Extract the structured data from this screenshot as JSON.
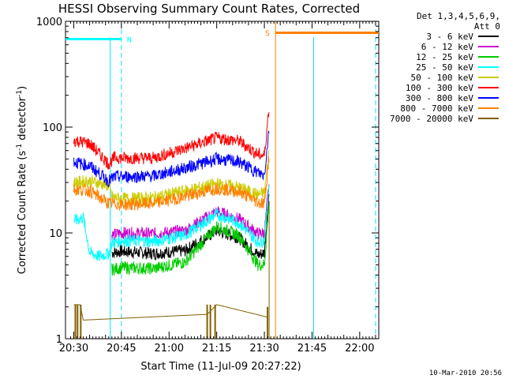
{
  "chart_data": {
    "type": "line",
    "title": "HESSI Observing Summary Count Rates, Corrected",
    "xlabel": "Start Time (11-Jul-09 20:27:22)",
    "ylabel_main": "Corrected Count Rate (s",
    "ylabel_sup1": "-1",
    "ylabel_mid": " detector",
    "ylabel_sup2": "-1",
    "ylabel_end": ")",
    "yscale": "log",
    "ylim": [
      1,
      1000
    ],
    "xlim_minutes": [
      -2.6,
      96
    ],
    "x_tick_labels": [
      "20:30",
      "20:45",
      "21:00",
      "21:15",
      "21:30",
      "21:45",
      "22:00"
    ],
    "x_tick_minutes": [
      0,
      15,
      30,
      45,
      60,
      75,
      90
    ],
    "y_tick_labels": [
      "1",
      "10",
      "100",
      "1000"
    ],
    "y_tick_values": [
      1,
      10,
      100,
      1000
    ],
    "legend_header": [
      "Det 1,3,4,5,6,9,",
      "Att 0"
    ],
    "series": [
      {
        "name": "3 - 6 keV",
        "color": "#000000",
        "values_minutes": [
          [
            12,
            6.5
          ],
          [
            15,
            6.7
          ],
          [
            25,
            6.4
          ],
          [
            35,
            6.8
          ],
          [
            45,
            10.5
          ],
          [
            52,
            9
          ],
          [
            58,
            6.2
          ],
          [
            60,
            6.5
          ],
          [
            61.5,
            25
          ]
        ]
      },
      {
        "name": "6 - 12 keV",
        "color": "#cc00cc",
        "values_minutes": [
          [
            12,
            9.5
          ],
          [
            15,
            10
          ],
          [
            25,
            9.8
          ],
          [
            35,
            10.5
          ],
          [
            45,
            16
          ],
          [
            52,
            13.5
          ],
          [
            58,
            9.8
          ],
          [
            60,
            10
          ],
          [
            61.5,
            30
          ]
        ]
      },
      {
        "name": "12 - 25 keV",
        "color": "#00cc00",
        "values_minutes": [
          [
            12,
            4.5
          ],
          [
            15,
            4.7
          ],
          [
            25,
            4.6
          ],
          [
            35,
            5.3
          ],
          [
            45,
            11.5
          ],
          [
            52,
            9.5
          ],
          [
            58,
            5
          ],
          [
            60,
            5
          ],
          [
            61.5,
            20
          ]
        ]
      },
      {
        "name": "25 - 50 keV",
        "color": "#00ffff",
        "values_minutes": [
          [
            0,
            13
          ],
          [
            3,
            14
          ],
          [
            5,
            6.5
          ],
          [
            8,
            6
          ],
          [
            11,
            6.4
          ],
          [
            12,
            8
          ],
          [
            15,
            8.5
          ],
          [
            25,
            8.3
          ],
          [
            35,
            9.5
          ],
          [
            45,
            15
          ],
          [
            52,
            12.5
          ],
          [
            58,
            8.2
          ],
          [
            60,
            8.5
          ],
          [
            61.5,
            30
          ]
        ]
      },
      {
        "name": "50 - 100 keV",
        "color": "#cccc00",
        "values_minutes": [
          [
            0,
            30
          ],
          [
            5,
            31
          ],
          [
            11,
            28
          ],
          [
            12,
            22
          ],
          [
            15,
            21
          ],
          [
            25,
            21.5
          ],
          [
            35,
            25
          ],
          [
            45,
            29
          ],
          [
            52,
            27
          ],
          [
            58,
            23
          ],
          [
            60,
            24
          ],
          [
            61.5,
            60
          ]
        ]
      },
      {
        "name": "100 - 300 keV",
        "color": "#ff0000",
        "values_minutes": [
          [
            0,
            75
          ],
          [
            5,
            70
          ],
          [
            11,
            45
          ],
          [
            13,
            52
          ],
          [
            15,
            51
          ],
          [
            25,
            51
          ],
          [
            35,
            63
          ],
          [
            45,
            79
          ],
          [
            52,
            74
          ],
          [
            58,
            55
          ],
          [
            60,
            54
          ],
          [
            61.5,
            160
          ]
        ]
      },
      {
        "name": "300 - 800 keV",
        "color": "#0000ff",
        "values_minutes": [
          [
            0,
            47
          ],
          [
            5,
            43
          ],
          [
            11,
            31
          ],
          [
            13,
            34
          ],
          [
            15,
            34
          ],
          [
            25,
            34.5
          ],
          [
            35,
            41
          ],
          [
            45,
            50
          ],
          [
            52,
            47
          ],
          [
            58,
            37
          ],
          [
            60,
            35
          ],
          [
            61.5,
            100
          ]
        ]
      },
      {
        "name": "800 - 7000 keV",
        "color": "#ff8000",
        "values_minutes": [
          [
            0,
            26
          ],
          [
            5,
            25
          ],
          [
            11,
            19
          ],
          [
            13,
            19
          ],
          [
            15,
            18.5
          ],
          [
            25,
            19
          ],
          [
            35,
            22
          ],
          [
            45,
            26.5
          ],
          [
            52,
            24.5
          ],
          [
            58,
            19.5
          ],
          [
            60,
            19
          ],
          [
            61.5,
            55
          ]
        ]
      },
      {
        "name": "7000 - 20000 keV",
        "color": "#806000",
        "values_minutes": [
          [
            0,
            2.1
          ],
          [
            2,
            2.1
          ],
          [
            3,
            1.5
          ],
          [
            42,
            1.7
          ],
          [
            45,
            2.1
          ],
          [
            61,
            1.6
          ]
        ]
      }
    ],
    "flags": [
      {
        "label": "N",
        "color": "#00ffff",
        "level": 680,
        "segments_minutes": [
          [
            -2.6,
            15
          ]
        ],
        "label_minutes": 17.5
      },
      {
        "label": "S",
        "color": "#ff8000",
        "level": 780,
        "segments_minutes": [
          [
            63.5,
            96
          ]
        ],
        "label_minutes": 61
      }
    ],
    "markers_minutes": {
      "cyan_dashed": [
        15,
        95
      ],
      "cyan_solid": [
        11.5,
        75.5
      ],
      "orange_solid": [
        63.5
      ],
      "olive_solid": [
        61.5
      ]
    }
  },
  "footer_timestamp": "10-Mar-2010 20:56"
}
